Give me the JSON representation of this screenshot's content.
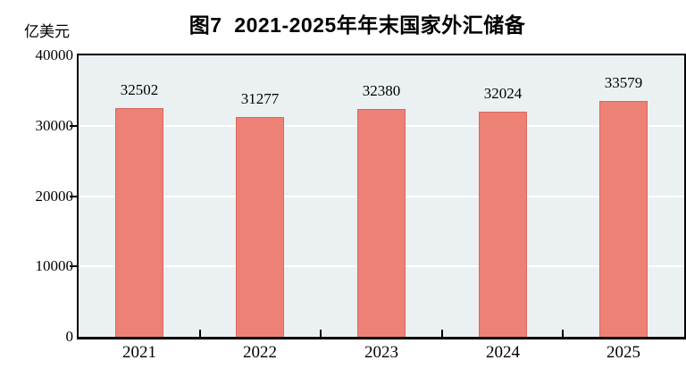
{
  "title": "图7  2021-2025年年末国家外汇储备",
  "unit_label": "亿美元",
  "chart_data": {
    "type": "bar",
    "title": "图7 2021-2025年年末国家外汇储备",
    "xlabel": "",
    "ylabel": "亿美元",
    "categories": [
      "2021",
      "2022",
      "2023",
      "2024",
      "2025"
    ],
    "values": [
      32502,
      31277,
      32380,
      32024,
      33579
    ],
    "ylim": [
      0,
      40000
    ],
    "yticks": [
      0,
      10000,
      20000,
      30000,
      40000
    ],
    "grid": "horizontal",
    "legend": "none",
    "bar_width_ratio": 0.4,
    "colors": {
      "bar_fill": "#ee8176",
      "bar_border": "#d9685e",
      "plot_background": "#ebf1f2",
      "gridline": "#ffffff",
      "axis": "#000000",
      "text": "#000000"
    }
  }
}
